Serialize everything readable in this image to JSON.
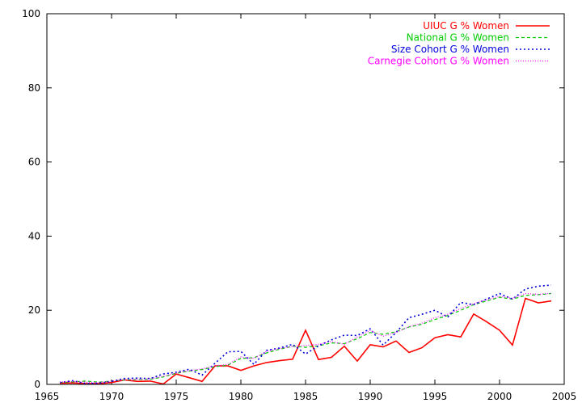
{
  "chart_data": {
    "type": "line",
    "xlim": [
      1965,
      2005
    ],
    "ylim": [
      0,
      100
    ],
    "x_ticks": [
      1965,
      1970,
      1975,
      1980,
      1985,
      1990,
      1995,
      2000,
      2005
    ],
    "y_ticks": [
      0,
      20,
      40,
      60,
      80,
      100
    ],
    "grid": false,
    "legend_position": "top-right",
    "x": [
      1966,
      1967,
      1968,
      1969,
      1970,
      1971,
      1972,
      1973,
      1974,
      1975,
      1976,
      1977,
      1978,
      1979,
      1980,
      1981,
      1982,
      1983,
      1984,
      1985,
      1986,
      1987,
      1988,
      1989,
      1990,
      1991,
      1992,
      1993,
      1994,
      1995,
      1996,
      1997,
      1998,
      1999,
      2000,
      2001,
      2002,
      2003,
      2004
    ],
    "series": [
      {
        "name": "UIUC G % Women",
        "color": "#ff0000",
        "dash": "",
        "width": 1.6,
        "values": [
          0.3,
          0.4,
          0.2,
          0.2,
          0.5,
          1.2,
          0.8,
          0.9,
          0.1,
          2.8,
          1.8,
          0.8,
          5.0,
          5.0,
          3.8,
          5.0,
          5.9,
          6.4,
          6.8,
          14.6,
          6.7,
          7.3,
          10.3,
          6.3,
          10.7,
          10.1,
          11.7,
          8.6,
          9.9,
          12.6,
          13.4,
          12.8,
          19.0,
          16.9,
          14.6,
          10.6,
          23.2,
          22.0,
          22.5
        ]
      },
      {
        "name": "National G % Women",
        "color": "#00cc00",
        "dash": "4,3",
        "width": 1.2,
        "values": [
          0.5,
          0.7,
          0.9,
          0.6,
          0.9,
          1.2,
          1.3,
          1.4,
          2.0,
          3.0,
          3.6,
          4.0,
          4.8,
          5.2,
          7.0,
          7.2,
          8.5,
          9.5,
          10.3,
          10.0,
          10.4,
          11.2,
          11.0,
          12.3,
          14.0,
          13.5,
          14.2,
          15.5,
          16.2,
          17.5,
          18.6,
          20.0,
          21.5,
          22.5,
          23.5,
          23.0,
          24.0,
          24.2,
          24.5
        ]
      },
      {
        "name": "Size Cohort G % Women",
        "color": "#0000dd",
        "dash": "2,3",
        "width": 1.6,
        "values": [
          0.5,
          1.0,
          0.2,
          0.3,
          0.8,
          1.6,
          1.7,
          1.6,
          2.8,
          3.3,
          4.1,
          2.5,
          5.7,
          8.8,
          8.9,
          5.4,
          9.2,
          9.8,
          10.8,
          8.2,
          10.4,
          12.0,
          13.3,
          13.2,
          15.0,
          10.6,
          14.0,
          18.0,
          18.9,
          20.0,
          18.2,
          22.1,
          21.5,
          23.0,
          24.5,
          23.0,
          25.7,
          26.5,
          26.8
        ]
      },
      {
        "name": "Carnegie Cohort G % Women",
        "color": "#ff00ff",
        "dash": "1,2",
        "width": 1.2,
        "values": [
          0.6,
          0.8,
          0.6,
          0.5,
          0.9,
          1.3,
          1.4,
          1.5,
          2.2,
          3.1,
          3.7,
          4.2,
          5.0,
          5.4,
          7.4,
          7.0,
          8.9,
          9.7,
          10.2,
          10.5,
          10.8,
          11.6,
          10.8,
          12.8,
          14.5,
          13.0,
          14.0,
          15.6,
          16.5,
          18.0,
          18.9,
          20.5,
          21.8,
          22.8,
          23.8,
          23.2,
          24.5,
          24.3,
          24.6
        ]
      }
    ]
  }
}
